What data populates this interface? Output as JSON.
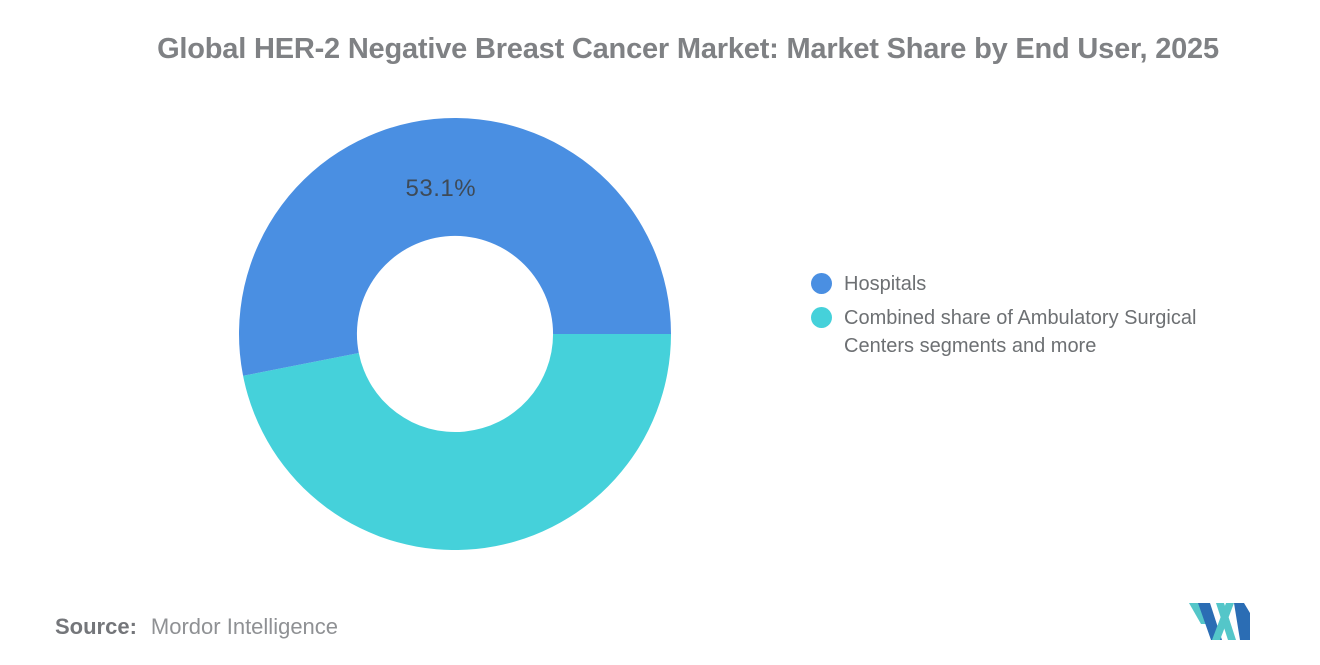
{
  "header": {
    "title": "Global HER-2 Negative Breast Cancer Market: Market Share by End User, 2025"
  },
  "chart_data": {
    "type": "pie",
    "subtype": "donut",
    "title": "Global HER-2 Negative Breast Cancer Market: Market Share by End User, 2025",
    "unit": "%",
    "series": [
      {
        "name": "Hospitals",
        "value": 53.1,
        "label": "53.1%",
        "color": "#4A8FE2"
      },
      {
        "name": "Combined share of Ambulatory Surgical Centers segments and more",
        "value": 46.9,
        "label": "",
        "color": "#45D1DA"
      }
    ],
    "start_angle_deg": 90,
    "sweep_direction": "clockwise",
    "draw_order": [
      1,
      0
    ],
    "inner_radius_ratio": 0.454,
    "label_radius_ratio": 0.675,
    "hole_color": "#FFFFFF",
    "legend_position": "right",
    "grid": "off"
  },
  "legend": {
    "items": [
      {
        "label": "Hospitals",
        "color": "#4A8FE2"
      },
      {
        "label": "Combined share of Ambulatory Surgical Centers segments and more",
        "color": "#45D1DA"
      }
    ]
  },
  "footer": {
    "source_label": "Source:",
    "source_value": "Mordor Intelligence"
  },
  "logo": {
    "name": "mordor-intelligence-logo",
    "colors": {
      "teal": "#54C6C9",
      "blue": "#2B6DB4"
    }
  },
  "colors": {
    "title_text": "#7F8184",
    "legend_text": "#6D7073",
    "slice_label_text": "#3E4A57",
    "source_label_text": "#74767A",
    "source_value_text": "#8F9194",
    "background": "#FFFFFF"
  }
}
